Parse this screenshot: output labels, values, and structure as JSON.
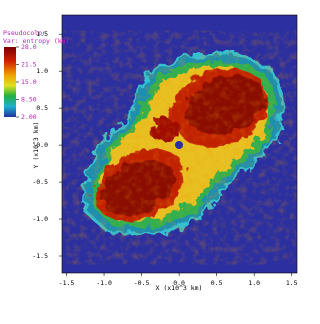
{
  "chart_data": {
    "type": "image",
    "legend_title": "Pseudocolor",
    "legend_variable": "Var: entropy (kB)",
    "xlabel": "X (x10^3 km)",
    "ylabel": "Y (x10^3 km)",
    "xlim": [
      -1.56,
      1.57
    ],
    "ylim": [
      -1.73,
      1.76
    ],
    "xticks": [
      {
        "value": -1.5,
        "label": "-1.5"
      },
      {
        "value": -1,
        "label": "-1.0"
      },
      {
        "value": -0.5,
        "label": "-0.5"
      },
      {
        "value": 0,
        "label": "0.0"
      },
      {
        "value": 0.5,
        "label": "0.5"
      },
      {
        "value": 1,
        "label": "1.0"
      },
      {
        "value": 1.5,
        "label": "1.5"
      }
    ],
    "yticks": [
      {
        "value": -1.5,
        "label": "-1.5"
      },
      {
        "value": -1,
        "label": "-1.0"
      },
      {
        "value": -0.5,
        "label": "-0.5"
      },
      {
        "value": 0,
        "label": "0.0"
      },
      {
        "value": 0.5,
        "label": "0.5"
      },
      {
        "value": 1,
        "label": "1.0"
      },
      {
        "value": 1.5,
        "label": "1.5"
      }
    ],
    "clim": [
      2,
      28
    ],
    "cticks": [
      {
        "value": 28,
        "label": "28.0"
      },
      {
        "value": 21.5,
        "label": "21.5"
      },
      {
        "value": 15,
        "label": "15.0"
      },
      {
        "value": 8.5,
        "label": "8.50"
      },
      {
        "value": 2,
        "label": "2.00"
      }
    ]
  }
}
